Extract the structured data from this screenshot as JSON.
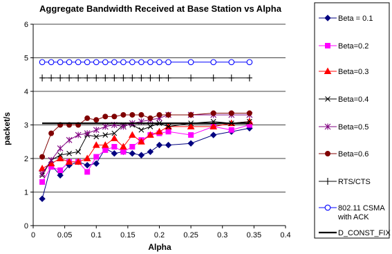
{
  "chart_data": {
    "type": "line",
    "title": "Aggregate Bandwidth Received at Base Station vs Alpha",
    "xlabel": "Alpha",
    "ylabel": "packet/s",
    "xlim": [
      0,
      0.4
    ],
    "ylim": [
      0,
      6
    ],
    "xticks": [
      "0",
      "0.05",
      "0.1",
      "0.15",
      "0.2",
      "0.25",
      "0.3",
      "0.35",
      "0.4"
    ],
    "yticks": [
      "0",
      "1",
      "2",
      "3",
      "4",
      "5",
      "6"
    ],
    "grid": "horizontal",
    "legend_position": "right",
    "series": [
      {
        "name": "Beta = 0.1",
        "color": "#000080",
        "marker": "diamond",
        "x": [
          0.0143,
          0.0286,
          0.0429,
          0.0571,
          0.0714,
          0.0857,
          0.1,
          0.1143,
          0.1286,
          0.1429,
          0.1571,
          0.1714,
          0.1857,
          0.2,
          0.2143,
          0.25,
          0.2857,
          0.3143,
          0.3429
        ],
        "y": [
          0.8,
          1.8,
          1.5,
          1.8,
          1.9,
          1.8,
          1.85,
          2.3,
          2.15,
          2.2,
          2.15,
          2.1,
          2.2,
          2.4,
          2.4,
          2.45,
          2.7,
          2.8,
          2.9
        ]
      },
      {
        "name": "Beta=0.2",
        "color": "#ff00ff",
        "marker": "square",
        "x": [
          0.0143,
          0.0286,
          0.0429,
          0.0571,
          0.0714,
          0.0857,
          0.1,
          0.1143,
          0.1286,
          0.1429,
          0.1571,
          0.1714,
          0.1857,
          0.2,
          0.2143,
          0.25,
          0.2857,
          0.3143,
          0.3429
        ],
        "y": [
          1.3,
          1.75,
          1.65,
          1.9,
          1.9,
          1.6,
          2.05,
          2.25,
          2.35,
          2.2,
          2.35,
          2.55,
          2.7,
          2.75,
          2.8,
          2.7,
          2.95,
          2.85,
          3.0
        ]
      },
      {
        "name": "Beta=0.3",
        "color": "#ff0000",
        "marker": "triangle",
        "x": [
          0.0143,
          0.0286,
          0.0429,
          0.0571,
          0.0714,
          0.0857,
          0.1,
          0.1143,
          0.1286,
          0.1429,
          0.1571,
          0.1714,
          0.1857,
          0.2,
          0.2143,
          0.25,
          0.2857,
          0.3143,
          0.3429
        ],
        "y": [
          1.7,
          1.85,
          2.0,
          1.9,
          1.9,
          2.0,
          2.4,
          2.4,
          2.6,
          2.35,
          2.7,
          2.5,
          2.7,
          2.8,
          2.95,
          2.95,
          2.95,
          3.05,
          3.1
        ]
      },
      {
        "name": "Beta=0.4",
        "color": "#000000",
        "marker": "x",
        "x": [
          0.0143,
          0.0286,
          0.0429,
          0.0571,
          0.0714,
          0.0857,
          0.1,
          0.1143,
          0.1286,
          0.1429,
          0.1571,
          0.1714,
          0.1857,
          0.2,
          0.2143,
          0.25,
          0.2857,
          0.3143,
          0.3429
        ],
        "y": [
          1.5,
          1.95,
          2.1,
          2.15,
          2.2,
          2.7,
          2.65,
          2.7,
          2.75,
          3.0,
          3.0,
          2.85,
          2.95,
          3.05,
          2.95,
          3.05,
          3.1,
          3.05,
          3.1
        ]
      },
      {
        "name": "Beta=0.5",
        "color": "#800080",
        "marker": "asterisk",
        "x": [
          0.0143,
          0.0286,
          0.0429,
          0.0571,
          0.0714,
          0.0857,
          0.1,
          0.1143,
          0.1286,
          0.1429,
          0.1571,
          0.1714,
          0.1857,
          0.2,
          0.2143,
          0.25,
          0.2857,
          0.3143,
          0.3429
        ],
        "y": [
          1.55,
          1.95,
          2.3,
          2.55,
          2.7,
          2.75,
          2.85,
          2.95,
          3.0,
          2.95,
          3.05,
          3.1,
          3.15,
          3.2,
          3.3,
          3.3,
          3.3,
          3.3,
          3.3
        ]
      },
      {
        "name": "Beta=0.6",
        "color": "#800000",
        "marker": "circle-filled",
        "x": [
          0.0143,
          0.0286,
          0.0429,
          0.0571,
          0.0714,
          0.0857,
          0.1,
          0.1143,
          0.1286,
          0.1429,
          0.1571,
          0.1714,
          0.1857,
          0.2,
          0.2143,
          0.25,
          0.2857,
          0.3143,
          0.3429
        ],
        "y": [
          2.05,
          2.75,
          3.0,
          3.0,
          3.0,
          3.2,
          3.15,
          3.25,
          3.25,
          3.3,
          3.3,
          3.3,
          3.2,
          3.3,
          3.3,
          3.3,
          3.35,
          3.35,
          3.35
        ]
      },
      {
        "name": "RTS/CTS",
        "color": "#000000",
        "marker": "plus",
        "x": [
          0.0143,
          0.0286,
          0.0429,
          0.0571,
          0.0714,
          0.0857,
          0.1,
          0.1143,
          0.1286,
          0.1429,
          0.1571,
          0.1714,
          0.1857,
          0.2,
          0.2143,
          0.25,
          0.2857,
          0.3143,
          0.3429
        ],
        "y": [
          4.4,
          4.4,
          4.4,
          4.4,
          4.4,
          4.4,
          4.4,
          4.4,
          4.4,
          4.4,
          4.4,
          4.4,
          4.4,
          4.4,
          4.4,
          4.4,
          4.4,
          4.4,
          4.4
        ]
      },
      {
        "name": "802.11 CSMA with ACK",
        "color": "#0000ff",
        "marker": "circle-open",
        "x": [
          0.0143,
          0.0286,
          0.0429,
          0.0571,
          0.0714,
          0.0857,
          0.1,
          0.1143,
          0.1286,
          0.1429,
          0.1571,
          0.1714,
          0.1857,
          0.2,
          0.2143,
          0.25,
          0.2857,
          0.3143,
          0.3429
        ],
        "y": [
          4.87,
          4.87,
          4.87,
          4.87,
          4.87,
          4.87,
          4.87,
          4.87,
          4.87,
          4.87,
          4.87,
          4.87,
          4.87,
          4.87,
          4.87,
          4.87,
          4.87,
          4.87,
          4.87
        ]
      },
      {
        "name": "D_CONST_FIX",
        "color": "#000000",
        "marker": "none",
        "x": [
          0.0143,
          0.3429
        ],
        "y": [
          3.05,
          3.05
        ]
      }
    ]
  }
}
